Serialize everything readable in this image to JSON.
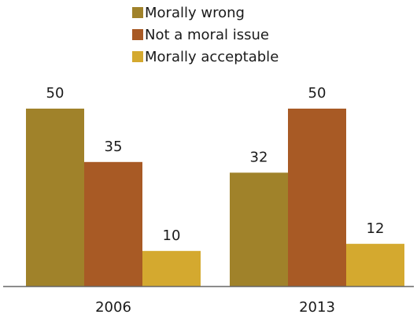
{
  "chart_data": {
    "type": "bar",
    "categories": [
      "2006",
      "2013"
    ],
    "series": [
      {
        "name": "Morally wrong",
        "color": "#a0822a",
        "values": [
          50,
          32
        ]
      },
      {
        "name": "Not a moral issue",
        "color": "#a85a25",
        "values": [
          35,
          50
        ]
      },
      {
        "name": "Morally acceptable",
        "color": "#d4a92f",
        "values": [
          10,
          12
        ]
      }
    ],
    "ylim": [
      0,
      50
    ],
    "grid": false,
    "legend_position": "top-center",
    "data_labels": true,
    "axis_line_color": "#666666"
  }
}
